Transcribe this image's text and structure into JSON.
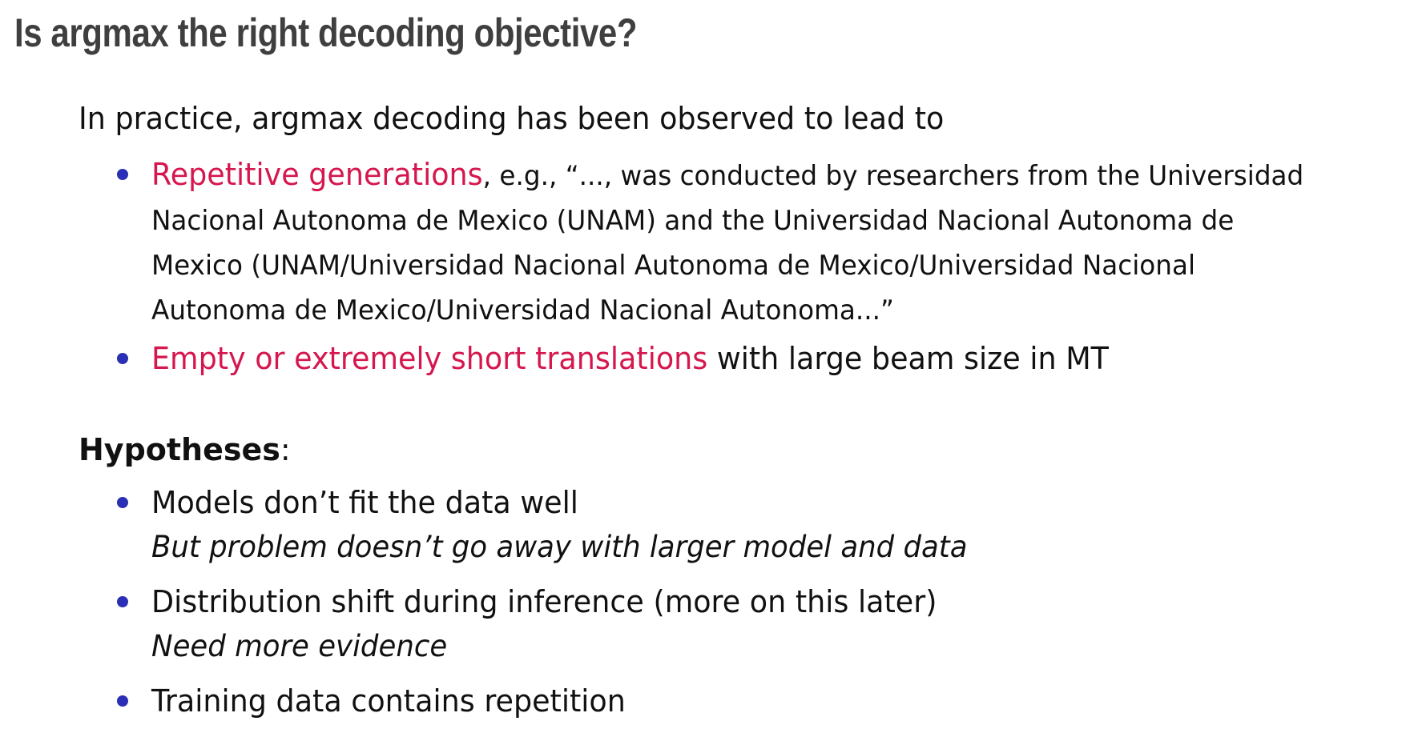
{
  "slide": {
    "title": "Is argmax the right decoding objective?",
    "intro": "In practice, argmax decoding has been observed to lead to",
    "observations": [
      {
        "highlight": "Repetitive generations",
        "rest": ", e.g., “..., was conducted by researchers from the Universidad Nacional Autonoma de Mexico (UNAM) and the Universidad Nacional Autonoma de Mexico (UNAM/Universidad Nacional Autonoma de Mexico/Universidad Nacional Autonoma de Mexico/Universidad Nacional Autonoma...”"
      },
      {
        "highlight": "Empty or extremely short translations",
        "rest": " with large beam size in MT"
      }
    ],
    "hypotheses_label": "Hypotheses",
    "hypotheses_colon": ":",
    "hypotheses": [
      {
        "text": "Models don’t fit the data well",
        "note": "But problem doesn’t go away with larger model and data"
      },
      {
        "text": "Distribution shift during inference (more on this later)",
        "note": "Need more evidence"
      },
      {
        "text": "Training data contains repetition",
        "note": ""
      }
    ],
    "colors": {
      "title": "#3f3f3f",
      "highlight": "#d5174e",
      "bullet": "#2b2fb5",
      "text": "#111111"
    }
  }
}
